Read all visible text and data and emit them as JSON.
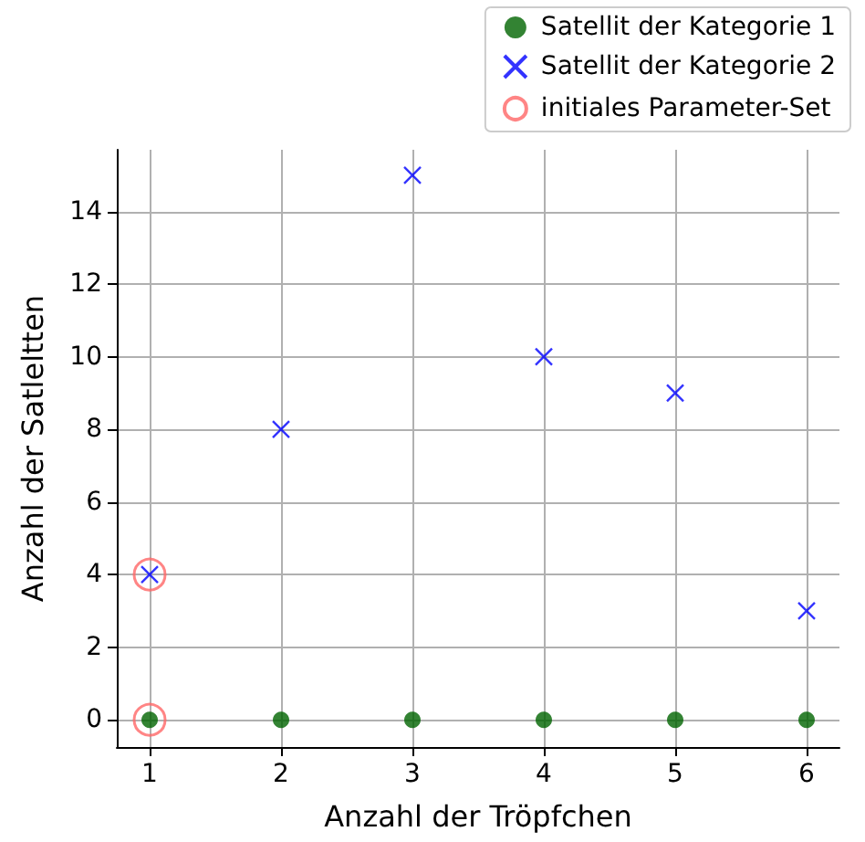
{
  "chart_data": {
    "type": "scatter",
    "xlabel": "Anzahl der Tröpfchen",
    "ylabel": "Anzahl der Satleltten",
    "xlim": [
      0.75,
      6.25
    ],
    "xticks": [
      1,
      2,
      3,
      4,
      5,
      6
    ],
    "ylim": [
      -0.75,
      15.7
    ],
    "yticks": [
      0,
      2,
      4,
      6,
      8,
      10,
      12,
      14
    ],
    "grid": true,
    "legend": "top right",
    "series": [
      {
        "name": "Satellit der Kategorie 1",
        "color": "#006400",
        "marker": "circle",
        "x": [
          1,
          2,
          3,
          4,
          5,
          6
        ],
        "values": [
          0,
          0,
          0,
          0,
          0,
          0
        ]
      },
      {
        "name": "Satellit der Kategorie 2",
        "color": "#0000ff",
        "marker": "cross",
        "x": [
          1,
          2,
          3,
          4,
          5,
          6
        ],
        "values": [
          4,
          8,
          15,
          10,
          9,
          3
        ]
      },
      {
        "name": "initiales Parameter-Set",
        "color": "#ff6666",
        "marker": "open circle",
        "x": [
          1,
          1
        ],
        "values": [
          0,
          4
        ]
      }
    ]
  }
}
